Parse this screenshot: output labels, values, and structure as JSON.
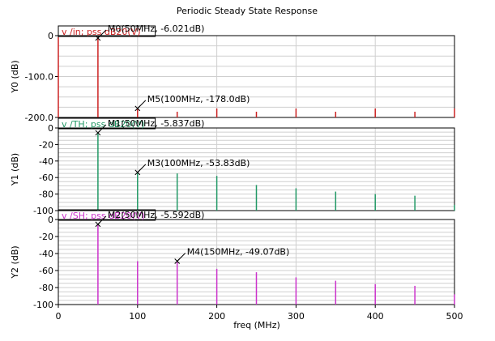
{
  "title": "Periodic Steady State Response",
  "xlabel": "freq (MHz)",
  "colors": {
    "grid": "#cfcfcf",
    "frame": "#000000"
  },
  "chart_data": {
    "type": "bar",
    "title": "Periodic Steady State Response",
    "xlabel": "freq (MHz)",
    "xlim": [
      0,
      500
    ],
    "xticks": [
      0,
      100,
      200,
      300,
      400,
      500
    ],
    "panels": [
      {
        "name": "v /in; pss dB20(V)",
        "ylabel": "Y0 (dB)",
        "ylim": [
          -200,
          0
        ],
        "yticks": [
          0,
          -100,
          -200
        ],
        "ytick_labels": [
          "0",
          "-100.0",
          "-200.0"
        ],
        "color": "#cc2222",
        "x": [
          0,
          50,
          100,
          150,
          200,
          250,
          300,
          350,
          400,
          450,
          500
        ],
        "values": [
          -4,
          -6.021,
          -178.0,
          -186,
          -178,
          -186,
          -178,
          -186,
          -178,
          -186,
          -178
        ],
        "markers": [
          {
            "label": "M0(50MHz, -6.021dB)",
            "x": 50,
            "y": -6.021
          },
          {
            "label": "M5(100MHz, -178.0dB)",
            "x": 100,
            "y": -178.0
          }
        ]
      },
      {
        "name": "v /TH; pss dB20(V)",
        "ylabel": "Y1 (dB)",
        "ylim": [
          -100,
          0
        ],
        "yticks": [
          0,
          -20,
          -40,
          -60,
          -80,
          -100
        ],
        "ytick_labels": [
          "0",
          "-20",
          "-40",
          "-60",
          "-80",
          "-100"
        ],
        "color": "#229966",
        "x": [
          0,
          50,
          100,
          150,
          200,
          250,
          300,
          350,
          400,
          450,
          500
        ],
        "values": [
          -100,
          -5.837,
          -53.83,
          -55,
          -58,
          -69,
          -73,
          -77,
          -80,
          -82,
          -93
        ],
        "markers": [
          {
            "label": "M1(50MHz, -5.837dB)",
            "x": 50,
            "y": -5.837
          },
          {
            "label": "M3(100MHz, -53.83dB)",
            "x": 100,
            "y": -53.83
          }
        ]
      },
      {
        "name": "v /SH; pss dB20(V)",
        "ylabel": "Y2 (dB)",
        "ylim": [
          -100,
          0
        ],
        "yticks": [
          0,
          -20,
          -40,
          -60,
          -80,
          -100
        ],
        "ytick_labels": [
          "0",
          "-20",
          "-40",
          "-60",
          "-80",
          "-100"
        ],
        "color": "#cc33cc",
        "x": [
          0,
          50,
          100,
          150,
          200,
          250,
          300,
          350,
          400,
          450,
          500
        ],
        "values": [
          -100,
          -5.592,
          -49.0,
          -49.07,
          -58,
          -62,
          -68,
          -72,
          -76,
          -78,
          -88
        ],
        "markers": [
          {
            "label": "M2(50MHz, -5.592dB)",
            "x": 50,
            "y": -5.592
          },
          {
            "label": "M4(150MHz, -49.07dB)",
            "x": 150,
            "y": -49.07
          }
        ]
      }
    ]
  }
}
